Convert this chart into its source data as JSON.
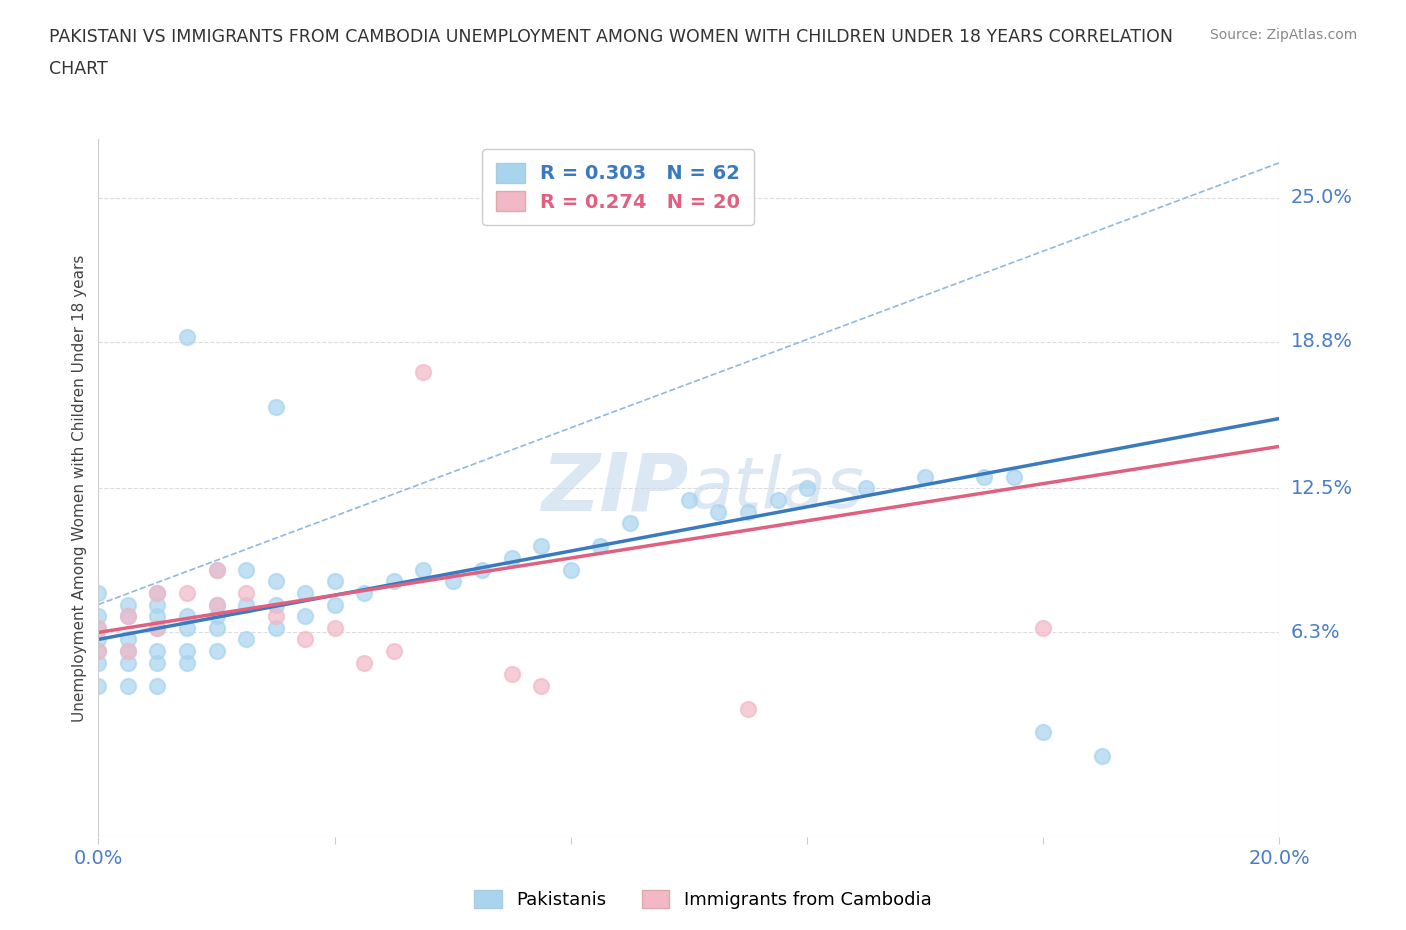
{
  "title_line1": "PAKISTANI VS IMMIGRANTS FROM CAMBODIA UNEMPLOYMENT AMONG WOMEN WITH CHILDREN UNDER 18 YEARS CORRELATION",
  "title_line2": "CHART",
  "source": "Source: ZipAtlas.com",
  "ylabel": "Unemployment Among Women with Children Under 18 years",
  "xlim": [
    0.0,
    0.2
  ],
  "ylim": [
    -0.025,
    0.275
  ],
  "xticks": [
    0.0,
    0.04,
    0.08,
    0.12,
    0.16,
    0.2
  ],
  "xticklabels": [
    "0.0%",
    "",
    "",
    "",
    "",
    "20.0%"
  ],
  "ytick_positions": [
    0.063,
    0.125,
    0.188,
    0.25
  ],
  "ytick_labels": [
    "6.3%",
    "12.5%",
    "18.8%",
    "25.0%"
  ],
  "pakistani_color": "#a8d4ee",
  "cambodia_color": "#f2b8c6",
  "trendline_pakistani_color": "#3a7abf",
  "trendline_cambodia_color": "#e06080",
  "dashed_line_color": "#90b8e0",
  "R_pakistani": 0.303,
  "N_pakistani": 62,
  "R_cambodia": 0.274,
  "N_cambodia": 20,
  "watermark_zip": "ZIP",
  "watermark_atlas": "atlas",
  "trendline_pakistani_x0": 0.0,
  "trendline_pakistani_y0": 0.06,
  "trendline_pakistani_x1": 0.2,
  "trendline_pakistani_y1": 0.155,
  "trendline_cambodia_x0": 0.0,
  "trendline_cambodia_y0": 0.063,
  "trendline_cambodia_x1": 0.2,
  "trendline_cambodia_y1": 0.143,
  "dashed_line_x0": 0.0,
  "dashed_line_y0": 0.075,
  "dashed_line_x1": 0.2,
  "dashed_line_y1": 0.265,
  "pakistani_x": [
    0.0,
    0.0,
    0.0,
    0.0,
    0.0,
    0.0,
    0.0,
    0.005,
    0.005,
    0.005,
    0.005,
    0.005,
    0.005,
    0.01,
    0.01,
    0.01,
    0.01,
    0.01,
    0.01,
    0.01,
    0.015,
    0.015,
    0.015,
    0.015,
    0.015,
    0.02,
    0.02,
    0.02,
    0.02,
    0.025,
    0.025,
    0.025,
    0.03,
    0.03,
    0.03,
    0.035,
    0.035,
    0.04,
    0.04,
    0.045,
    0.05,
    0.055,
    0.06,
    0.065,
    0.07,
    0.075,
    0.08,
    0.085,
    0.09,
    0.1,
    0.105,
    0.11,
    0.115,
    0.12,
    0.13,
    0.14,
    0.15,
    0.155,
    0.16,
    0.17,
    0.02,
    0.03
  ],
  "pakistani_y": [
    0.04,
    0.05,
    0.055,
    0.06,
    0.065,
    0.07,
    0.08,
    0.04,
    0.05,
    0.055,
    0.06,
    0.07,
    0.075,
    0.04,
    0.05,
    0.055,
    0.065,
    0.07,
    0.075,
    0.08,
    0.05,
    0.055,
    0.065,
    0.07,
    0.19,
    0.055,
    0.065,
    0.075,
    0.09,
    0.06,
    0.075,
    0.09,
    0.065,
    0.075,
    0.085,
    0.07,
    0.08,
    0.075,
    0.085,
    0.08,
    0.085,
    0.09,
    0.085,
    0.09,
    0.095,
    0.1,
    0.09,
    0.1,
    0.11,
    0.12,
    0.115,
    0.115,
    0.12,
    0.125,
    0.125,
    0.13,
    0.13,
    0.13,
    0.02,
    0.01,
    0.07,
    0.16
  ],
  "cambodia_x": [
    0.0,
    0.0,
    0.005,
    0.005,
    0.01,
    0.01,
    0.015,
    0.02,
    0.02,
    0.025,
    0.03,
    0.035,
    0.04,
    0.045,
    0.05,
    0.055,
    0.07,
    0.075,
    0.16,
    0.11
  ],
  "cambodia_y": [
    0.055,
    0.065,
    0.055,
    0.07,
    0.065,
    0.08,
    0.08,
    0.075,
    0.09,
    0.08,
    0.07,
    0.06,
    0.065,
    0.05,
    0.055,
    0.175,
    0.045,
    0.04,
    0.065,
    0.03
  ],
  "background_color": "#ffffff",
  "grid_color": "#dddddd"
}
